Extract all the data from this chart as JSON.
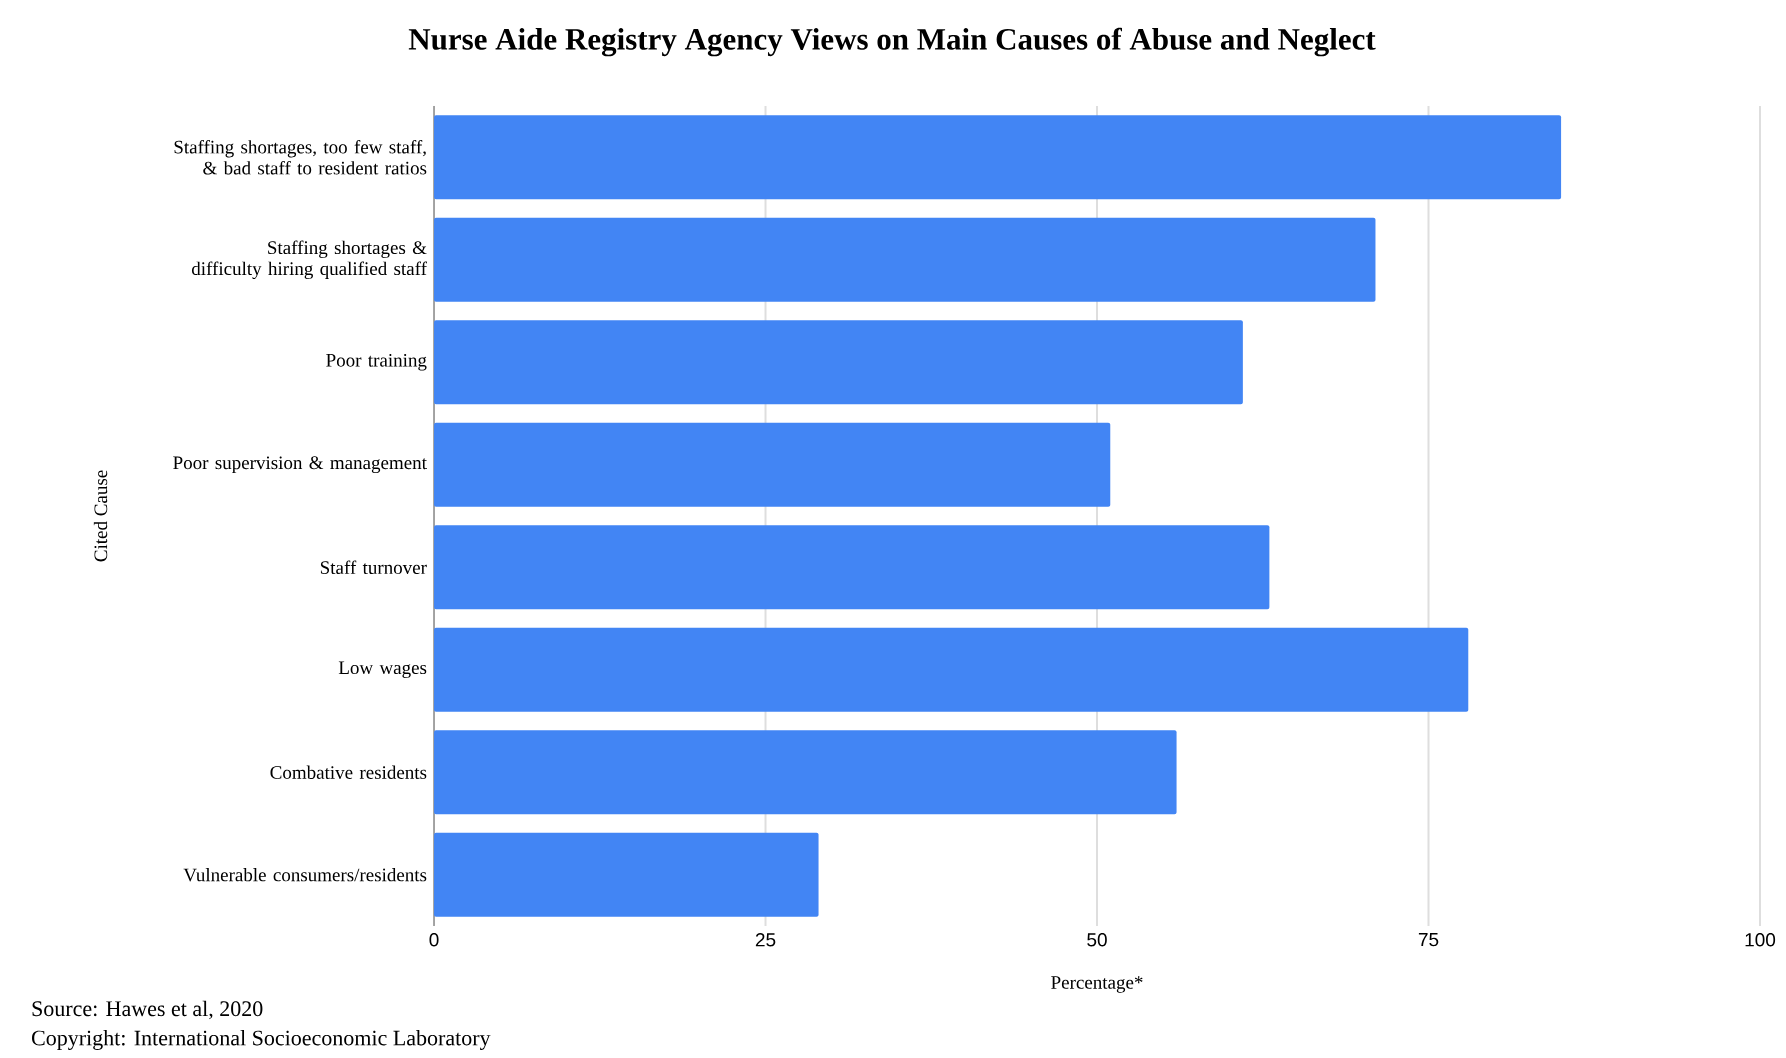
{
  "chart_data": {
    "type": "bar",
    "orientation": "horizontal",
    "title": "Nurse Aide Registry Agency Views on Main Causes of Abuse and Neglect",
    "xlabel": "Percentage*",
    "ylabel": "Cited Cause",
    "categories": [
      "Staffing shortages, too few staff, & bad staff to resident ratios",
      "Staffing shortages & difficulty hiring qualified staff",
      "Poor training",
      "Poor supervision & management",
      "Staff turnover",
      "Low wages",
      "Combative residents",
      "Vulnerable consumers/residents"
    ],
    "values": [
      85,
      71,
      61,
      51,
      63,
      78,
      56,
      29
    ],
    "color": "#4285f4",
    "xlim": [
      0,
      100
    ],
    "xticks": [
      0,
      25,
      50,
      75,
      100
    ],
    "grid": "x",
    "annotations": [
      "Source: Hawes et al, 2020",
      "Copyright: International Socioeconomic Laboratory"
    ]
  }
}
